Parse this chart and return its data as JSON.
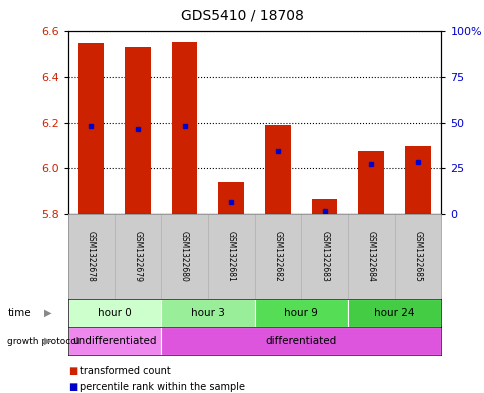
{
  "title": "GDS5410 / 18708",
  "samples": [
    "GSM1322678",
    "GSM1322679",
    "GSM1322680",
    "GSM1322681",
    "GSM1322682",
    "GSM1322683",
    "GSM1322684",
    "GSM1322685"
  ],
  "transformed_count": [
    6.55,
    6.53,
    6.555,
    5.94,
    6.19,
    5.865,
    6.075,
    6.1
  ],
  "base_value": 5.8,
  "percentile_y": [
    6.185,
    6.175,
    6.185,
    5.855,
    6.075,
    5.815,
    6.02,
    6.03
  ],
  "ylim_left": [
    5.8,
    6.6
  ],
  "ylim_right": [
    0,
    100
  ],
  "yticks_left": [
    5.8,
    6.0,
    6.2,
    6.4,
    6.6
  ],
  "yticks_right": [
    0,
    25,
    50,
    75,
    100
  ],
  "ytick_labels_right": [
    "0",
    "25",
    "50",
    "75",
    "100%"
  ],
  "bar_color": "#cc2200",
  "percentile_color": "#0000cc",
  "time_groups": [
    {
      "label": "hour 0",
      "start": 0,
      "end": 2,
      "color": "#ccffcc"
    },
    {
      "label": "hour 3",
      "start": 2,
      "end": 4,
      "color": "#99ee99"
    },
    {
      "label": "hour 9",
      "start": 4,
      "end": 6,
      "color": "#55dd55"
    },
    {
      "label": "hour 24",
      "start": 6,
      "end": 8,
      "color": "#44cc44"
    }
  ],
  "growth_groups": [
    {
      "label": "undifferentiated",
      "start": 0,
      "end": 2,
      "color": "#ee88ee"
    },
    {
      "label": "differentiated",
      "start": 2,
      "end": 8,
      "color": "#dd55dd"
    }
  ],
  "bar_width": 0.55
}
